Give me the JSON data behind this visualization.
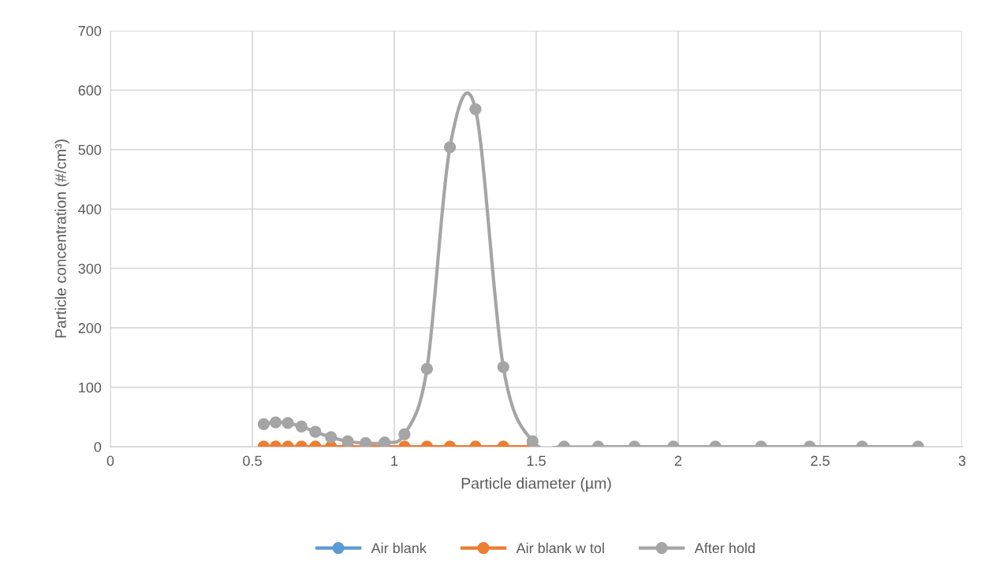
{
  "chart_data": {
    "type": "line",
    "xlabel": "Particle diameter (µm)",
    "ylabel": "Particle concentration (#/cm³)",
    "x": [
      0.54,
      0.582,
      0.625,
      0.673,
      0.722,
      0.777,
      0.836,
      0.899,
      0.966,
      1.036,
      1.115,
      1.196,
      1.286,
      1.384,
      1.487,
      1.598,
      1.718,
      1.846,
      1.983,
      2.131,
      2.292,
      2.463,
      2.648,
      2.845
    ],
    "series": [
      {
        "name": "Air blank",
        "color": "#5b9bd5",
        "values": [
          null,
          null,
          null,
          null,
          null,
          null,
          null,
          null,
          null,
          null,
          null,
          null,
          null,
          null,
          null,
          null,
          null,
          null,
          null,
          null,
          null,
          null,
          null,
          null
        ]
      },
      {
        "name": "Air blank w tol",
        "color": "#ed7d31",
        "values": [
          0,
          0,
          0,
          0,
          0,
          0,
          0,
          0,
          0,
          0,
          0,
          0,
          0,
          0,
          0,
          null,
          null,
          null,
          null,
          null,
          null,
          null,
          null,
          null
        ]
      },
      {
        "name": "After hold",
        "color": "#a5a5a5",
        "values": [
          38,
          41,
          40,
          34,
          25,
          16,
          9,
          6,
          7,
          21,
          131,
          504,
          568,
          134,
          9,
          0,
          0,
          0,
          0,
          0,
          0,
          0,
          0,
          0
        ]
      }
    ],
    "xlim": [
      0,
      3
    ],
    "xticks": [
      0,
      0.5,
      1,
      1.5,
      2,
      2.5,
      3
    ],
    "ylim": [
      0,
      700
    ],
    "yticks": [
      0,
      100,
      200,
      300,
      400,
      500,
      600,
      700
    ],
    "grid": true,
    "legend": "bottom",
    "marker": "circle",
    "line_style": "solid"
  }
}
